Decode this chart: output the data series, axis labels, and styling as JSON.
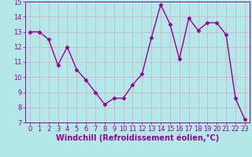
{
  "x": [
    0,
    1,
    2,
    3,
    4,
    5,
    6,
    7,
    8,
    9,
    10,
    11,
    12,
    13,
    14,
    15,
    16,
    17,
    18,
    19,
    20,
    21,
    22,
    23
  ],
  "y": [
    13.0,
    13.0,
    12.5,
    10.8,
    12.0,
    10.5,
    9.8,
    9.0,
    8.2,
    8.6,
    8.6,
    9.5,
    10.2,
    12.6,
    14.8,
    13.5,
    11.2,
    13.9,
    13.1,
    13.6,
    13.6,
    12.8,
    8.6,
    7.2
  ],
  "line_color": "#990099",
  "marker": "D",
  "marker_size": 2.5,
  "bg_color": "#b3e8e8",
  "grid_color": "#d0b8d0",
  "xlabel": "Windchill (Refroidissement éolien,°C)",
  "ylim": [
    7,
    15
  ],
  "xlim_min": -0.5,
  "xlim_max": 23.5,
  "yticks": [
    7,
    8,
    9,
    10,
    11,
    12,
    13,
    14,
    15
  ],
  "xticks": [
    0,
    1,
    2,
    3,
    4,
    5,
    6,
    7,
    8,
    9,
    10,
    11,
    12,
    13,
    14,
    15,
    16,
    17,
    18,
    19,
    20,
    21,
    22,
    23
  ],
  "tick_label_color": "#990099",
  "xlabel_color": "#990099",
  "xlabel_fontsize": 7,
  "tick_fontsize": 6,
  "line_width": 1.0
}
